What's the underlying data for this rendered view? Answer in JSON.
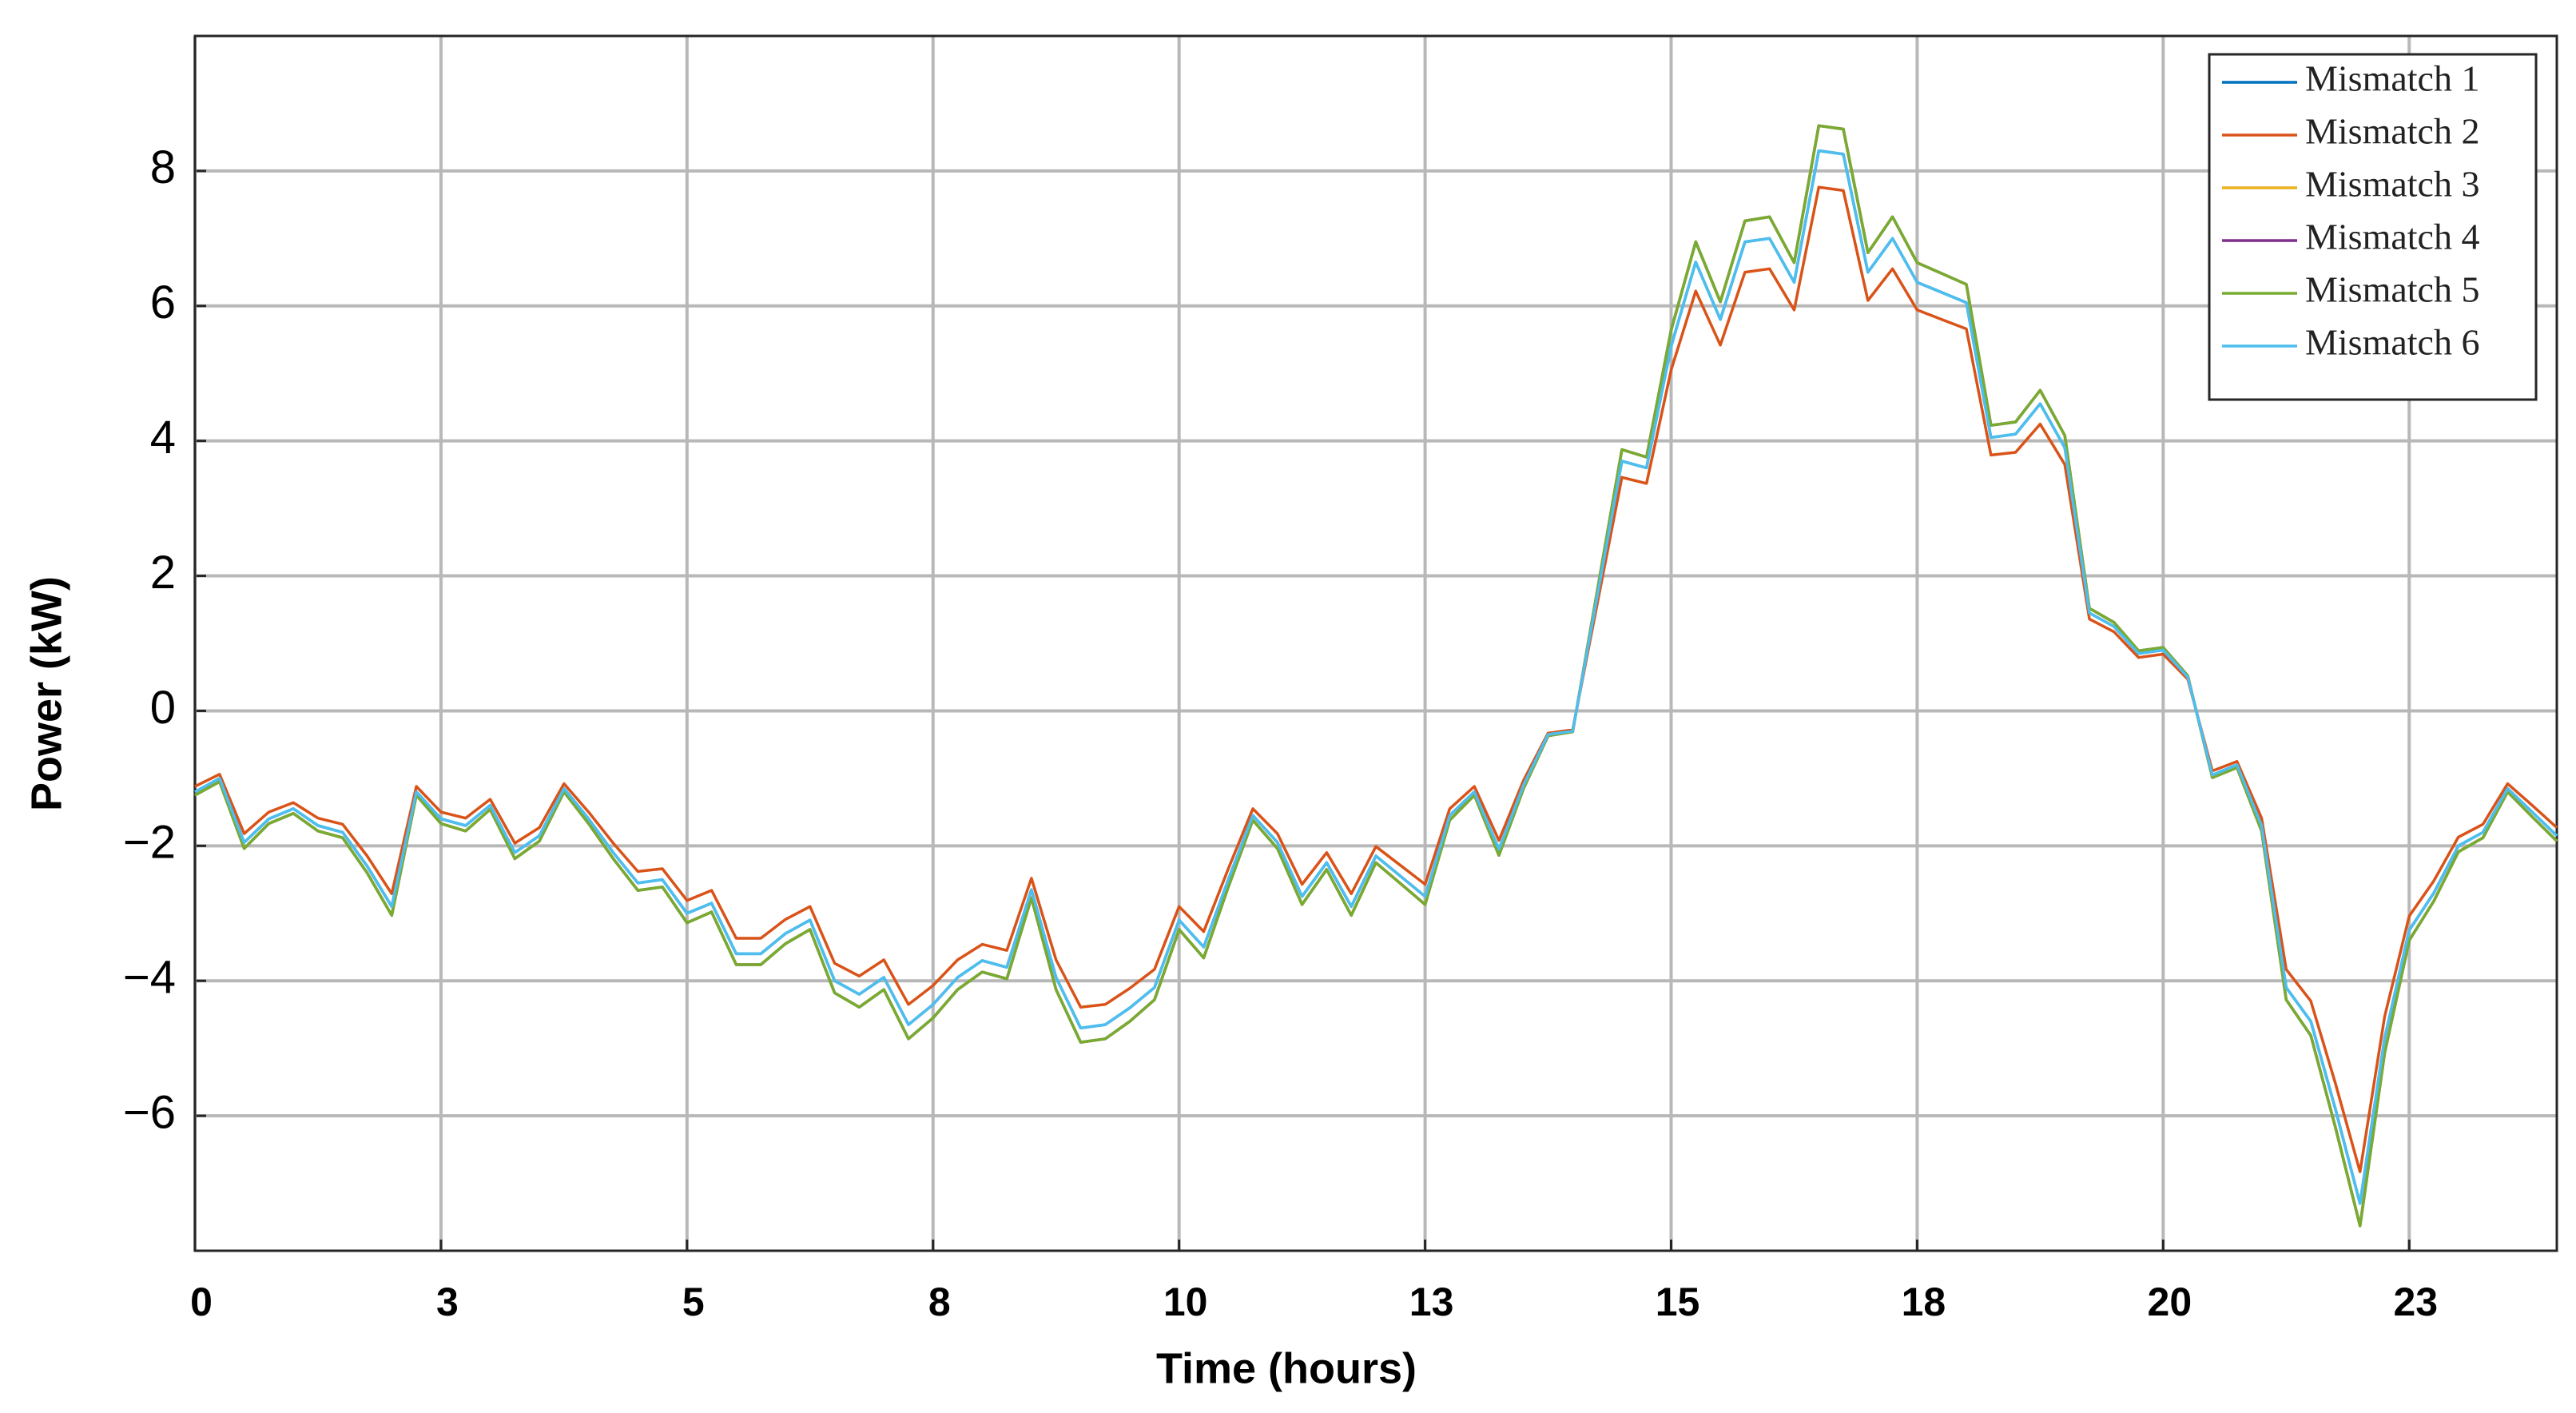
{
  "chart_data": {
    "type": "line",
    "xlabel": "Time (hours)",
    "ylabel": "Power (kW)",
    "xlim": [
      0,
      24
    ],
    "ylim": [
      -8,
      10
    ],
    "xticks": [
      0,
      {
        "value": 2.5,
        "label": "3"
      },
      5,
      {
        "value": 7.5,
        "label": "8"
      },
      10,
      {
        "value": 12.5,
        "label": "13"
      },
      15,
      {
        "value": 17.5,
        "label": "18"
      },
      20,
      {
        "value": 22.5,
        "label": "23"
      }
    ],
    "yticks": [
      {
        "value": -6,
        "label": "−6"
      },
      {
        "value": -4,
        "label": "−4"
      },
      {
        "value": -2,
        "label": "−2"
      },
      0,
      2,
      4,
      6,
      8
    ],
    "grid": true,
    "legend": "upper right",
    "x": [
      0,
      0.25,
      0.5,
      0.75,
      1,
      1.25,
      1.5,
      1.75,
      2,
      2.25,
      2.5,
      2.75,
      3,
      3.25,
      3.5,
      3.75,
      4,
      4.25,
      4.5,
      4.75,
      5,
      5.25,
      5.5,
      5.75,
      6,
      6.25,
      6.5,
      6.75,
      7,
      7.25,
      7.5,
      7.75,
      8,
      8.25,
      8.5,
      8.75,
      9,
      9.25,
      9.5,
      9.75,
      10,
      10.25,
      10.5,
      10.75,
      11,
      11.25,
      11.5,
      11.75,
      12,
      12.25,
      12.5,
      12.75,
      13,
      13.25,
      13.5,
      13.75,
      14,
      14.25,
      14.5,
      14.75,
      15,
      15.25,
      15.5,
      15.75,
      16,
      16.25,
      16.5,
      16.75,
      17,
      17.25,
      17.5,
      17.75,
      18,
      18.25,
      18.5,
      18.75,
      19,
      19.25,
      19.5,
      19.75,
      20,
      20.25,
      20.5,
      20.75,
      21,
      21.25,
      21.5,
      21.75,
      22,
      22.25,
      22.5,
      22.75,
      23,
      23.25,
      23.5,
      23.75,
      24
    ],
    "series": [
      {
        "name": "Mismatch 1",
        "color": "#0072BD",
        "values": [
          -1.2,
          -1.0,
          -1.95,
          -1.6,
          -1.45,
          -1.7,
          -1.8,
          -2.3,
          -2.9,
          -1.2,
          -1.6,
          -1.7,
          -1.4,
          -2.1,
          -1.85,
          -1.15,
          -1.6,
          -2.1,
          -2.55,
          -2.5,
          -3.0,
          -2.85,
          -3.6,
          -3.6,
          -3.3,
          -3.1,
          -4.0,
          -4.2,
          -3.95,
          -4.65,
          -4.35,
          -3.95,
          -3.7,
          -3.8,
          -2.65,
          -3.95,
          -4.7,
          -4.65,
          -4.4,
          -4.1,
          -3.1,
          -3.5,
          -2.5,
          -1.55,
          -1.95,
          -2.75,
          -2.25,
          -2.9,
          -2.15,
          -2.45,
          -2.75,
          -1.55,
          -1.2,
          -2.05,
          -1.1,
          -0.35,
          -0.3,
          1.7,
          3.7,
          3.6,
          5.4,
          6.65,
          5.8,
          6.95,
          7.0,
          6.35,
          8.3,
          8.25,
          6.5,
          7.0,
          6.35,
          6.2,
          6.05,
          4.05,
          4.1,
          4.55,
          3.9,
          1.45,
          1.25,
          0.85,
          0.9,
          0.5,
          -0.95,
          -0.8,
          -1.7,
          -4.1,
          -4.6,
          -5.9,
          -7.3,
          -4.85,
          -3.25,
          -2.7,
          -2.0,
          -1.8,
          -1.15,
          -1.5,
          -1.85
        ]
      },
      {
        "name": "Mismatch 2",
        "color": "#D95319",
        "values": [
          -1.12,
          -0.94,
          -1.82,
          -1.5,
          -1.36,
          -1.59,
          -1.68,
          -2.15,
          -2.71,
          -1.12,
          -1.5,
          -1.59,
          -1.31,
          -1.96,
          -1.73,
          -1.08,
          -1.5,
          -1.96,
          -2.38,
          -2.34,
          -2.81,
          -2.66,
          -3.37,
          -3.37,
          -3.09,
          -2.9,
          -3.74,
          -3.93,
          -3.69,
          -4.35,
          -4.07,
          -3.69,
          -3.46,
          -3.55,
          -2.48,
          -3.69,
          -4.39,
          -4.35,
          -4.11,
          -3.83,
          -2.9,
          -3.27,
          -2.34,
          -1.45,
          -1.82,
          -2.57,
          -2.1,
          -2.71,
          -2.01,
          -2.29,
          -2.57,
          -1.45,
          -1.12,
          -1.92,
          -1.03,
          -0.33,
          -0.28,
          1.59,
          3.46,
          3.37,
          5.05,
          6.22,
          5.42,
          6.5,
          6.55,
          5.94,
          7.76,
          7.71,
          6.08,
          6.55,
          5.94,
          5.8,
          5.66,
          3.79,
          3.83,
          4.25,
          3.65,
          1.36,
          1.17,
          0.79,
          0.84,
          0.47,
          -0.89,
          -0.75,
          -1.59,
          -3.83,
          -4.3,
          -5.52,
          -6.83,
          -4.53,
          -3.04,
          -2.52,
          -1.87,
          -1.68,
          -1.08,
          -1.4,
          -1.73
        ]
      },
      {
        "name": "Mismatch 3",
        "color": "#EDB120",
        "values": [
          -1.25,
          -1.05,
          -2.04,
          -1.67,
          -1.52,
          -1.78,
          -1.88,
          -2.4,
          -3.03,
          -1.25,
          -1.67,
          -1.78,
          -1.46,
          -2.19,
          -1.93,
          -1.2,
          -1.67,
          -2.19,
          -2.66,
          -2.61,
          -3.14,
          -2.98,
          -3.76,
          -3.76,
          -3.45,
          -3.24,
          -4.18,
          -4.39,
          -4.13,
          -4.86,
          -4.55,
          -4.13,
          -3.87,
          -3.97,
          -2.77,
          -4.13,
          -4.91,
          -4.86,
          -4.6,
          -4.28,
          -3.24,
          -3.66,
          -2.61,
          -1.62,
          -2.04,
          -2.87,
          -2.35,
          -3.03,
          -2.25,
          -2.56,
          -2.87,
          -1.62,
          -1.25,
          -2.14,
          -1.15,
          -0.37,
          -0.31,
          1.78,
          3.87,
          3.76,
          5.64,
          6.95,
          6.06,
          7.26,
          7.32,
          6.64,
          8.67,
          8.62,
          6.79,
          7.32,
          6.64,
          6.48,
          6.32,
          4.23,
          4.28,
          4.75,
          4.08,
          1.52,
          1.31,
          0.89,
          0.94,
          0.52,
          -0.99,
          -0.84,
          -1.78,
          -4.28,
          -4.81,
          -6.17,
          -7.63,
          -5.07,
          -3.4,
          -2.82,
          -2.09,
          -1.88,
          -1.2,
          -1.57,
          -1.93
        ]
      },
      {
        "name": "Mismatch 4",
        "color": "#7E2F8E",
        "values": [
          -1.25,
          -1.05,
          -2.04,
          -1.67,
          -1.52,
          -1.78,
          -1.88,
          -2.4,
          -3.03,
          -1.25,
          -1.67,
          -1.78,
          -1.46,
          -2.19,
          -1.93,
          -1.2,
          -1.67,
          -2.19,
          -2.66,
          -2.61,
          -3.14,
          -2.98,
          -3.76,
          -3.76,
          -3.45,
          -3.24,
          -4.18,
          -4.39,
          -4.13,
          -4.86,
          -4.55,
          -4.13,
          -3.87,
          -3.97,
          -2.77,
          -4.13,
          -4.91,
          -4.86,
          -4.6,
          -4.28,
          -3.24,
          -3.66,
          -2.61,
          -1.62,
          -2.04,
          -2.87,
          -2.35,
          -3.03,
          -2.25,
          -2.56,
          -2.87,
          -1.62,
          -1.25,
          -2.14,
          -1.15,
          -0.37,
          -0.31,
          1.78,
          3.87,
          3.76,
          5.64,
          6.95,
          6.06,
          7.26,
          7.32,
          6.64,
          8.67,
          8.62,
          6.79,
          7.32,
          6.64,
          6.48,
          6.32,
          4.23,
          4.28,
          4.75,
          4.08,
          1.52,
          1.31,
          0.89,
          0.94,
          0.52,
          -0.99,
          -0.84,
          -1.78,
          -4.28,
          -4.81,
          -6.17,
          -7.63,
          -5.07,
          -3.4,
          -2.82,
          -2.09,
          -1.88,
          -1.2,
          -1.57,
          -1.93
        ]
      },
      {
        "name": "Mismatch 5",
        "color": "#77AC30",
        "values": [
          -1.25,
          -1.05,
          -2.04,
          -1.67,
          -1.52,
          -1.78,
          -1.88,
          -2.4,
          -3.03,
          -1.25,
          -1.67,
          -1.78,
          -1.46,
          -2.19,
          -1.93,
          -1.2,
          -1.67,
          -2.19,
          -2.66,
          -2.61,
          -3.14,
          -2.98,
          -3.76,
          -3.76,
          -3.45,
          -3.24,
          -4.18,
          -4.39,
          -4.13,
          -4.86,
          -4.55,
          -4.13,
          -3.87,
          -3.97,
          -2.77,
          -4.13,
          -4.91,
          -4.86,
          -4.6,
          -4.28,
          -3.24,
          -3.66,
          -2.61,
          -1.62,
          -2.04,
          -2.87,
          -2.35,
          -3.03,
          -2.25,
          -2.56,
          -2.87,
          -1.62,
          -1.25,
          -2.14,
          -1.15,
          -0.37,
          -0.31,
          1.78,
          3.87,
          3.76,
          5.64,
          6.95,
          6.06,
          7.26,
          7.32,
          6.64,
          8.67,
          8.62,
          6.79,
          7.32,
          6.64,
          6.48,
          6.32,
          4.23,
          4.28,
          4.75,
          4.08,
          1.52,
          1.31,
          0.89,
          0.94,
          0.52,
          -0.99,
          -0.84,
          -1.78,
          -4.28,
          -4.81,
          -6.17,
          -7.63,
          -5.07,
          -3.4,
          -2.82,
          -2.09,
          -1.88,
          -1.2,
          -1.57,
          -1.93
        ]
      },
      {
        "name": "Mismatch 6",
        "color": "#4DBEEE",
        "values": [
          -1.2,
          -1.0,
          -1.95,
          -1.6,
          -1.45,
          -1.7,
          -1.8,
          -2.3,
          -2.9,
          -1.2,
          -1.6,
          -1.7,
          -1.4,
          -2.1,
          -1.85,
          -1.15,
          -1.6,
          -2.1,
          -2.55,
          -2.5,
          -3.0,
          -2.85,
          -3.6,
          -3.6,
          -3.3,
          -3.1,
          -4.0,
          -4.2,
          -3.95,
          -4.65,
          -4.35,
          -3.95,
          -3.7,
          -3.8,
          -2.65,
          -3.95,
          -4.7,
          -4.65,
          -4.4,
          -4.1,
          -3.1,
          -3.5,
          -2.5,
          -1.55,
          -1.95,
          -2.75,
          -2.25,
          -2.9,
          -2.15,
          -2.45,
          -2.75,
          -1.55,
          -1.2,
          -2.05,
          -1.1,
          -0.35,
          -0.3,
          1.7,
          3.7,
          3.6,
          5.4,
          6.65,
          5.8,
          6.95,
          7.0,
          6.35,
          8.3,
          8.25,
          6.5,
          7.0,
          6.35,
          6.2,
          6.05,
          4.05,
          4.1,
          4.55,
          3.9,
          1.45,
          1.25,
          0.85,
          0.9,
          0.5,
          -0.95,
          -0.8,
          -1.7,
          -4.1,
          -4.6,
          -5.9,
          -7.3,
          -4.85,
          -3.25,
          -2.7,
          -2.0,
          -1.8,
          -1.15,
          -1.5,
          -1.85
        ]
      }
    ]
  }
}
